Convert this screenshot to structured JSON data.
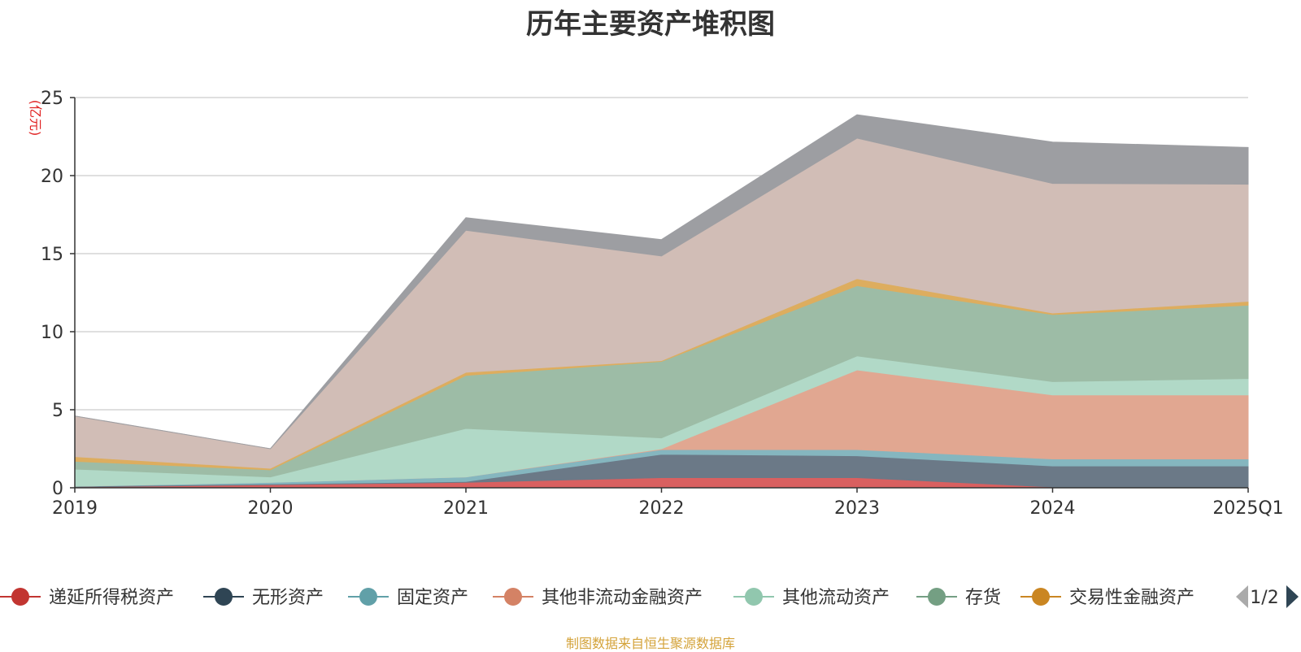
{
  "colors": {
    "递延所得税资产": "#d96060",
    "无形资产": "#6b7987",
    "固定资产": "#85b6bf",
    "其他非流动金融资产": "#e1a791",
    "其他流动资产": "#b1d9c7",
    "存货": "#9dbca6",
    "交易性金融资产": "#ddad5f",
    "series8": "#d1bdb6",
    "series9": "#9d9ea2"
  },
  "legend_colors": {
    "递延所得税资产": "#c23531",
    "无形资产": "#2f4554",
    "固定资产": "#61a0a8",
    "其他非流动金融资产": "#d48265",
    "其他流动资产": "#91c7ae",
    "存货": "#749f83",
    "交易性金融资产": "#ca8622"
  },
  "legend_page": "1/2",
  "source_note": "制图数据来自恒生聚源数据库",
  "chart_data": {
    "type": "area",
    "stacked": true,
    "title": "历年主要资产堆积图",
    "ylabel": "(亿元)",
    "ylim": [
      0,
      25
    ],
    "yticks": [
      0,
      5,
      10,
      15,
      20,
      25
    ],
    "grid": true,
    "legend_position": "bottom",
    "categories": [
      "2019",
      "2020",
      "2021",
      "2022",
      "2023",
      "2024",
      "2025Q1"
    ],
    "series": [
      {
        "name": "递延所得税资产",
        "values": [
          0.05,
          0.2,
          0.35,
          0.65,
          0.65,
          0.05,
          0.05
        ]
      },
      {
        "name": "无形资产",
        "values": [
          0.05,
          0.05,
          0.05,
          1.5,
          1.4,
          1.35,
          1.35
        ]
      },
      {
        "name": "固定资产",
        "values": [
          0.0,
          0.1,
          0.3,
          0.3,
          0.4,
          0.45,
          0.45
        ]
      },
      {
        "name": "其他非流动金融资产",
        "values": [
          0.0,
          0.0,
          0.0,
          0.05,
          5.1,
          4.1,
          4.1
        ]
      },
      {
        "name": "其他流动资产",
        "values": [
          1.1,
          0.35,
          3.1,
          0.7,
          0.9,
          0.85,
          1.05
        ]
      },
      {
        "name": "存货",
        "values": [
          0.5,
          0.45,
          3.4,
          4.9,
          4.5,
          4.3,
          4.7
        ]
      },
      {
        "name": "交易性金融资产",
        "values": [
          0.3,
          0.1,
          0.2,
          0.05,
          0.45,
          0.1,
          0.25
        ]
      },
      {
        "values": [
          2.6,
          1.25,
          9.1,
          6.7,
          9.0,
          8.3,
          7.5
        ]
      },
      {
        "values": [
          0.0,
          0.0,
          0.8,
          1.05,
          1.5,
          2.65,
          2.35
        ]
      }
    ]
  }
}
